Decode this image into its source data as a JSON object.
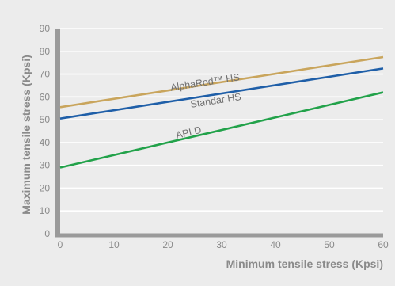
{
  "chart_data": {
    "type": "line",
    "title": "",
    "xlabel": "Minimum tensile stress (Kpsi)",
    "ylabel": "Maximum tensile stress (Kpsi)",
    "xlim": [
      0,
      60
    ],
    "ylim": [
      0,
      90
    ],
    "x_ticks": [
      0,
      10,
      20,
      30,
      40,
      50,
      60
    ],
    "y_ticks": [
      0,
      10,
      20,
      30,
      40,
      50,
      60,
      70,
      80,
      90
    ],
    "grid": "horizontal",
    "legend": "inline labels on lines",
    "series": [
      {
        "name": "AlphaRod™ HS",
        "x": [
          0,
          60
        ],
        "y": [
          55.5,
          77.5
        ],
        "color": "#c9a55c",
        "label_x": 27,
        "label_y": 65
      },
      {
        "name": "Standar HS",
        "x": [
          0,
          60
        ],
        "y": [
          50.5,
          72.5
        ],
        "color": "#1f5fa8",
        "label_x": 29,
        "label_y": 57
      },
      {
        "name": "API D",
        "x": [
          0,
          60
        ],
        "y": [
          29,
          62
        ],
        "color": "#22a24a",
        "label_x": 24,
        "label_y": 43
      }
    ]
  }
}
